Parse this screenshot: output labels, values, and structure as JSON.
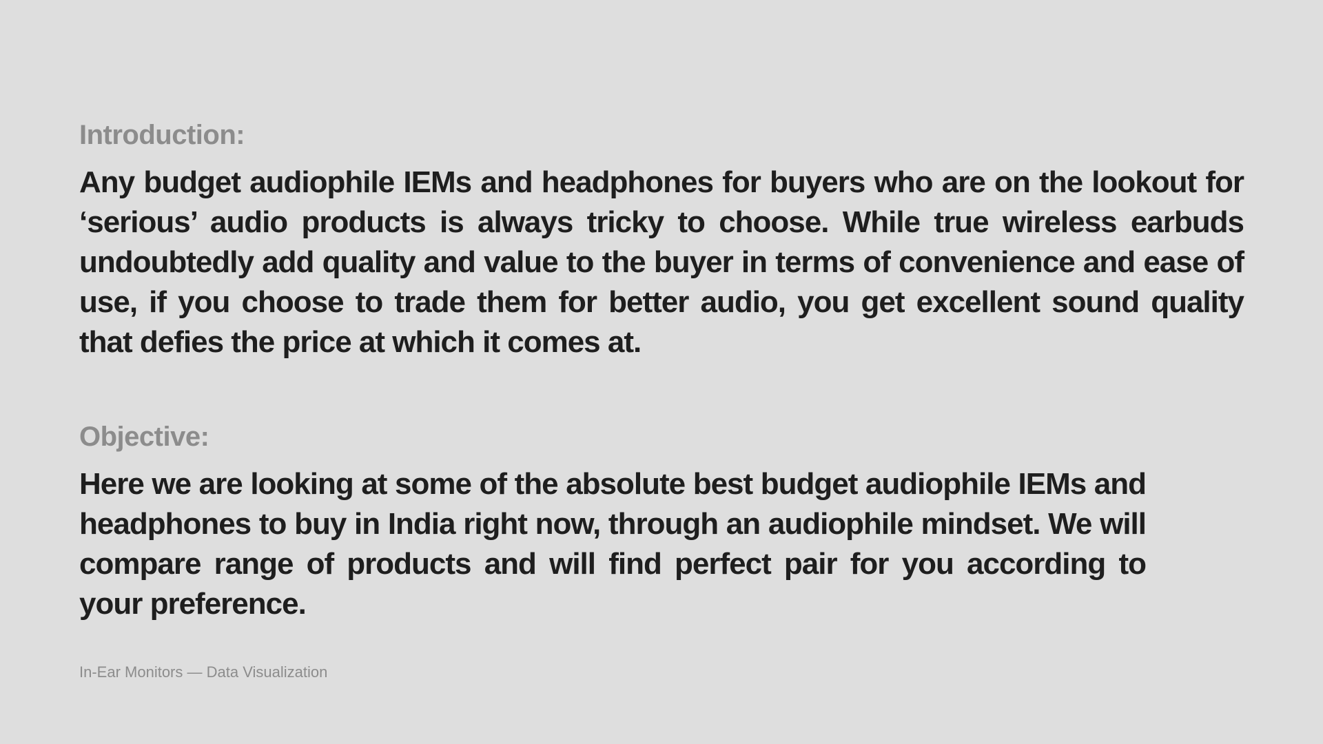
{
  "introduction": {
    "heading": "Introduction:",
    "body": "Any budget audiophile IEMs and headphones for buyers who are on the lookout for ‘serious’ audio products is always tricky to choose. While true wireless earbuds undoubtedly add quality and value to the buyer in terms of convenience and ease of use, if you choose to trade them for better audio, you get excellent sound quality that defies the price at which it comes at."
  },
  "objective": {
    "heading": "Objective:",
    "body": "Here we are looking at some of the absolute best budget audiophile IEMs and headphones to buy in India right now, through an audiophile mindset. We will compare range of products and will find perfect pair for you according to your preference."
  },
  "footer": {
    "label": "In-Ear Monitors — Data Visualization"
  }
}
